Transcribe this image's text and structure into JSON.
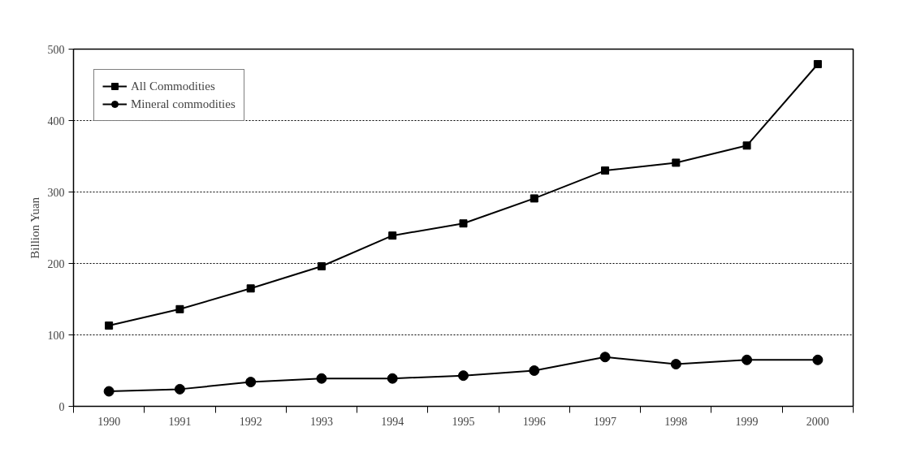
{
  "chart_data": {
    "type": "line",
    "ylabel": "Billion Yuan",
    "categories": [
      "1990",
      "1991",
      "1992",
      "1993",
      "1994",
      "1995",
      "1996",
      "1997",
      "1998",
      "1999",
      "2000"
    ],
    "series": [
      {
        "name": "All Commodities",
        "color": "#000000",
        "marker": "square",
        "values": [
          113,
          136,
          165,
          196,
          239,
          256,
          291,
          330,
          341,
          365,
          479
        ]
      },
      {
        "name": "Mineral commodities",
        "color": "#000000",
        "marker": "circle",
        "values": [
          21,
          24,
          34,
          39,
          39,
          43,
          50,
          69,
          59,
          65,
          65
        ]
      }
    ],
    "ylim": [
      0,
      500
    ],
    "yticks": [
      0,
      100,
      200,
      300,
      400,
      500
    ],
    "grid": "y",
    "legend": "top left",
    "line_style": "solid"
  }
}
